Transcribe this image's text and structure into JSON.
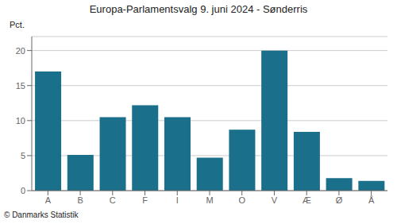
{
  "chart_data": {
    "type": "bar",
    "title": "Europa-Parlamentsvalg 9. juni 2024 - Sønderris",
    "categories": [
      "A",
      "B",
      "C",
      "F",
      "I",
      "M",
      "O",
      "V",
      "Æ",
      "Ø",
      "Å"
    ],
    "values": [
      17.0,
      5.1,
      10.5,
      12.2,
      10.5,
      4.7,
      8.7,
      20.0,
      8.4,
      1.8,
      1.4
    ],
    "color": "#1a6f8a",
    "ylabel": "Pct.",
    "ylim": [
      0,
      22
    ],
    "yticks": [
      0,
      5,
      10,
      15,
      20
    ],
    "grid": true,
    "footnote": "© Danmarks Statistik"
  }
}
